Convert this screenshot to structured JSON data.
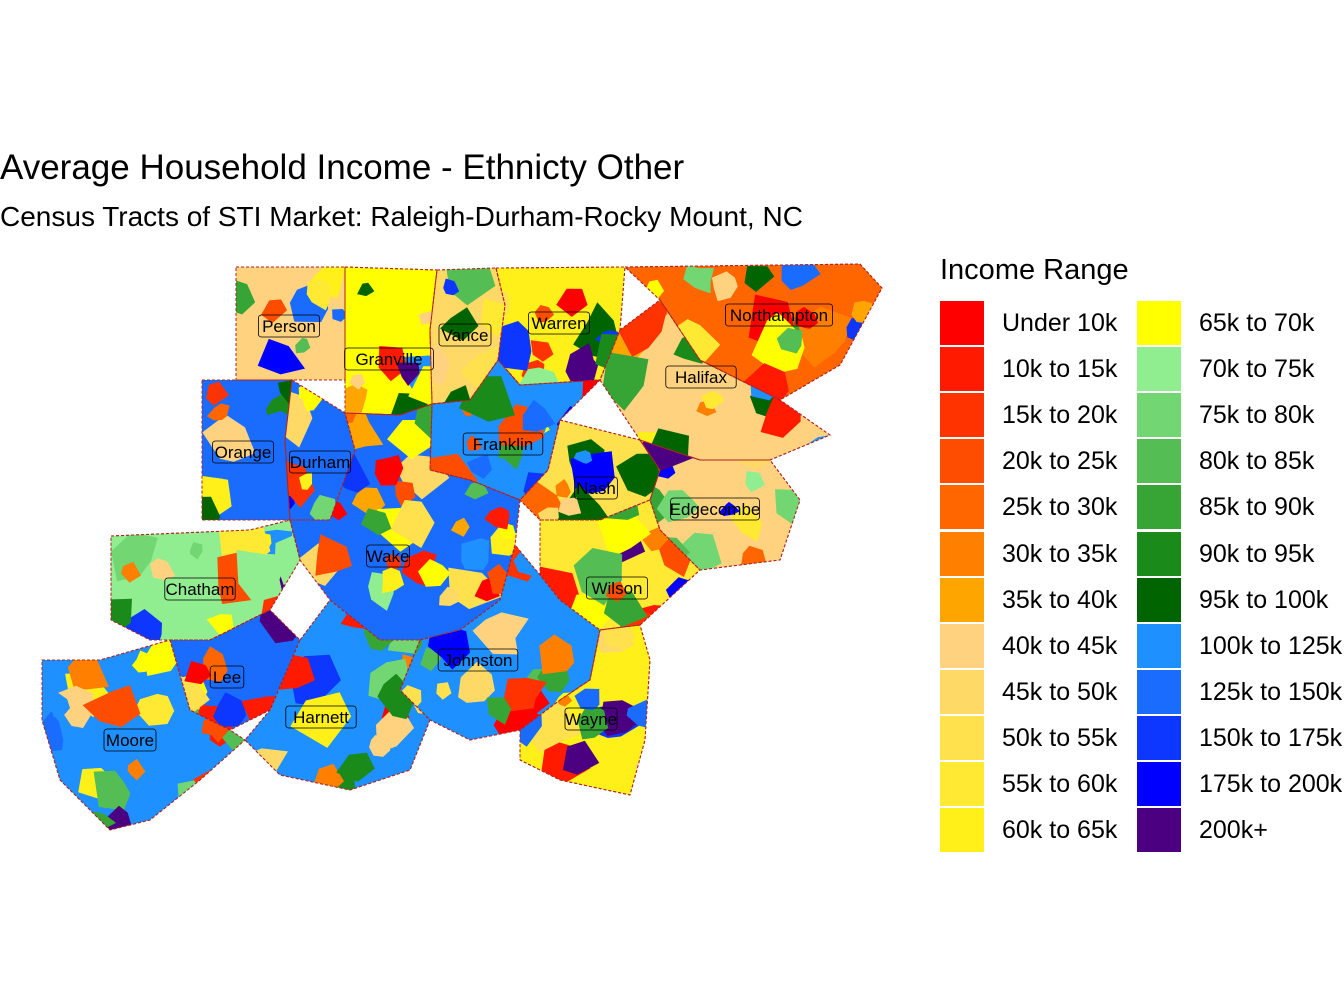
{
  "title": "Average Household Income - Ethnicty Other",
  "subtitle": "Census Tracts of STI Market: Raleigh-Durham-Rocky Mount, NC",
  "legend": {
    "title": "Income Range",
    "items": [
      {
        "label": "Under 10k",
        "color": "#ff0000"
      },
      {
        "label": "10k to 15k",
        "color": "#ff1a00"
      },
      {
        "label": "15k to 20k",
        "color": "#ff3300"
      },
      {
        "label": "20k to 25k",
        "color": "#ff4d00"
      },
      {
        "label": "25k to 30k",
        "color": "#ff6600"
      },
      {
        "label": "30k to 35k",
        "color": "#ff8000"
      },
      {
        "label": "35k to 40k",
        "color": "#ffa500"
      },
      {
        "label": "40k to 45k",
        "color": "#ffd280"
      },
      {
        "label": "45k to 50k",
        "color": "#ffd966"
      },
      {
        "label": "50k to 55k",
        "color": "#ffe14d"
      },
      {
        "label": "55k to 60k",
        "color": "#ffe933"
      },
      {
        "label": "60k to 65k",
        "color": "#fff01a"
      },
      {
        "label": "65k to 70k",
        "color": "#ffff00"
      },
      {
        "label": "70k to 75k",
        "color": "#90ee90"
      },
      {
        "label": "75k to 80k",
        "color": "#72d672"
      },
      {
        "label": "80k to 85k",
        "color": "#54be54"
      },
      {
        "label": "85k to 90k",
        "color": "#36a536"
      },
      {
        "label": "90k to 95k",
        "color": "#1a8b1a"
      },
      {
        "label": "95k to 100k",
        "color": "#006400"
      },
      {
        "label": "100k to 125k",
        "color": "#1e90ff"
      },
      {
        "label": "125k to 150k",
        "color": "#1a6cff"
      },
      {
        "label": "150k to 175k",
        "color": "#0d36ff"
      },
      {
        "label": "175k to 200k",
        "color": "#0000ff"
      },
      {
        "label": "200k+",
        "color": "#4b0082"
      }
    ]
  },
  "counties": [
    {
      "name": "Person",
      "band": "40k to 45k"
    },
    {
      "name": "Granville",
      "band": "65k to 70k"
    },
    {
      "name": "Vance",
      "band": "45k to 50k"
    },
    {
      "name": "Warren",
      "band": "60k to 65k"
    },
    {
      "name": "Northampton",
      "band": "25k to 30k"
    },
    {
      "name": "Halifax",
      "band": "40k to 45k"
    },
    {
      "name": "Orange",
      "band": "125k to 150k"
    },
    {
      "name": "Durham",
      "band": "125k to 150k"
    },
    {
      "name": "Franklin",
      "band": "100k to 125k"
    },
    {
      "name": "Nash",
      "band": "50k to 55k"
    },
    {
      "name": "Edgecombe",
      "band": "40k to 45k"
    },
    {
      "name": "Wake",
      "band": "125k to 150k"
    },
    {
      "name": "Chatham",
      "band": "70k to 75k"
    },
    {
      "name": "Wilson",
      "band": "55k to 60k"
    },
    {
      "name": "Johnston",
      "band": "100k to 125k"
    },
    {
      "name": "Lee",
      "band": "125k to 150k"
    },
    {
      "name": "Harnett",
      "band": "100k to 125k"
    },
    {
      "name": "Wayne",
      "band": "60k to 65k"
    },
    {
      "name": "Moore",
      "band": "100k to 125k"
    }
  ]
}
